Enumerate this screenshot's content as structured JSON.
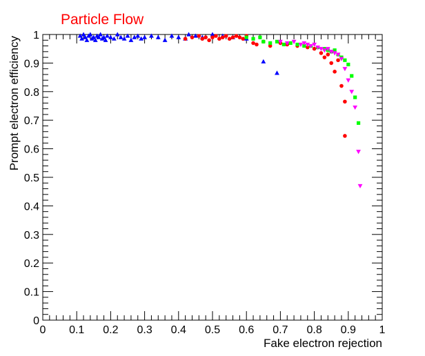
{
  "chart_data": {
    "type": "scatter",
    "title": "Particle Flow",
    "xlabel": "Fake electron rejection",
    "ylabel": "Prompt electron efficiency",
    "xlim": [
      0,
      1
    ],
    "ylim": [
      0,
      1
    ],
    "x_ticks": [
      "0",
      "0.1",
      "0.2",
      "0.3",
      "0.4",
      "0.5",
      "0.6",
      "0.7",
      "0.8",
      "0.9",
      "1"
    ],
    "y_ticks": [
      "0",
      "0.1",
      "0.2",
      "0.3",
      "0.4",
      "0.5",
      "0.6",
      "0.7",
      "0.8",
      "0.9",
      "1"
    ],
    "grid": false,
    "colors": {
      "title": "#ff0000",
      "axis": "#000000"
    },
    "series": [
      {
        "marker": "triangle-up",
        "color": "#0000ff",
        "points": [
          [
            0.11,
            0.995
          ],
          [
            0.115,
            0.985
          ],
          [
            0.12,
            1.0
          ],
          [
            0.125,
            0.99
          ],
          [
            0.13,
            0.98
          ],
          [
            0.135,
            0.995
          ],
          [
            0.14,
            1.0
          ],
          [
            0.145,
            0.985
          ],
          [
            0.15,
            0.99
          ],
          [
            0.155,
            0.98
          ],
          [
            0.16,
            0.995
          ],
          [
            0.165,
            0.99
          ],
          [
            0.17,
            1.0
          ],
          [
            0.175,
            0.985
          ],
          [
            0.18,
            0.99
          ],
          [
            0.185,
            0.98
          ],
          [
            0.19,
            0.995
          ],
          [
            0.2,
            0.99
          ],
          [
            0.21,
            0.985
          ],
          [
            0.22,
            1.0
          ],
          [
            0.23,
            0.99
          ],
          [
            0.24,
            0.985
          ],
          [
            0.25,
            0.995
          ],
          [
            0.26,
            0.98
          ],
          [
            0.27,
            0.99
          ],
          [
            0.28,
            0.995
          ],
          [
            0.29,
            0.985
          ],
          [
            0.3,
            0.99
          ],
          [
            0.32,
            0.995
          ],
          [
            0.34,
            0.99
          ],
          [
            0.36,
            0.98
          ],
          [
            0.38,
            0.995
          ],
          [
            0.4,
            0.99
          ],
          [
            0.42,
            0.985
          ],
          [
            0.43,
            1.0
          ],
          [
            0.45,
            0.995
          ],
          [
            0.47,
            0.99
          ],
          [
            0.5,
            1.0
          ],
          [
            0.53,
            0.995
          ],
          [
            0.56,
            0.99
          ],
          [
            0.6,
            0.985
          ],
          [
            0.65,
            0.905
          ],
          [
            0.69,
            0.865
          ]
        ]
      },
      {
        "marker": "circle",
        "color": "#ff0000",
        "points": [
          [
            0.42,
            0.985
          ],
          [
            0.44,
            0.99
          ],
          [
            0.46,
            0.995
          ],
          [
            0.47,
            0.985
          ],
          [
            0.48,
            0.99
          ],
          [
            0.49,
            0.98
          ],
          [
            0.5,
            0.99
          ],
          [
            0.51,
            0.995
          ],
          [
            0.52,
            0.985
          ],
          [
            0.53,
            0.99
          ],
          [
            0.54,
            0.995
          ],
          [
            0.55,
            0.985
          ],
          [
            0.56,
            0.99
          ],
          [
            0.57,
            0.995
          ],
          [
            0.58,
            0.99
          ],
          [
            0.59,
            0.985
          ],
          [
            0.6,
            0.995
          ],
          [
            0.62,
            0.97
          ],
          [
            0.63,
            0.965
          ],
          [
            0.65,
            0.975
          ],
          [
            0.67,
            0.96
          ],
          [
            0.7,
            0.97
          ],
          [
            0.72,
            0.965
          ],
          [
            0.75,
            0.96
          ],
          [
            0.78,
            0.955
          ],
          [
            0.8,
            0.95
          ],
          [
            0.82,
            0.935
          ],
          [
            0.83,
            0.92
          ],
          [
            0.84,
            0.93
          ],
          [
            0.85,
            0.9
          ],
          [
            0.86,
            0.87
          ],
          [
            0.87,
            0.91
          ],
          [
            0.88,
            0.82
          ],
          [
            0.89,
            0.765
          ],
          [
            0.89,
            0.645
          ]
        ]
      },
      {
        "marker": "square",
        "color": "#00ff00",
        "points": [
          [
            0.6,
            0.99
          ],
          [
            0.62,
            0.985
          ],
          [
            0.64,
            0.99
          ],
          [
            0.65,
            0.975
          ],
          [
            0.67,
            0.97
          ],
          [
            0.69,
            0.975
          ],
          [
            0.71,
            0.965
          ],
          [
            0.73,
            0.97
          ],
          [
            0.75,
            0.965
          ],
          [
            0.77,
            0.96
          ],
          [
            0.79,
            0.96
          ],
          [
            0.81,
            0.955
          ],
          [
            0.83,
            0.95
          ],
          [
            0.84,
            0.945
          ],
          [
            0.85,
            0.94
          ],
          [
            0.86,
            0.945
          ],
          [
            0.87,
            0.93
          ],
          [
            0.88,
            0.92
          ],
          [
            0.89,
            0.91
          ],
          [
            0.9,
            0.895
          ],
          [
            0.91,
            0.855
          ],
          [
            0.92,
            0.78
          ],
          [
            0.93,
            0.69
          ]
        ]
      },
      {
        "marker": "triangle-down",
        "color": "#ff00ff",
        "points": [
          [
            0.7,
            0.975
          ],
          [
            0.72,
            0.97
          ],
          [
            0.74,
            0.975
          ],
          [
            0.76,
            0.965
          ],
          [
            0.77,
            0.97
          ],
          [
            0.78,
            0.965
          ],
          [
            0.79,
            0.96
          ],
          [
            0.8,
            0.965
          ],
          [
            0.81,
            0.955
          ],
          [
            0.82,
            0.95
          ],
          [
            0.83,
            0.945
          ],
          [
            0.84,
            0.95
          ],
          [
            0.85,
            0.94
          ],
          [
            0.86,
            0.935
          ],
          [
            0.87,
            0.93
          ],
          [
            0.88,
            0.915
          ],
          [
            0.89,
            0.88
          ],
          [
            0.9,
            0.84
          ],
          [
            0.91,
            0.8
          ],
          [
            0.92,
            0.745
          ],
          [
            0.93,
            0.59
          ],
          [
            0.935,
            0.47
          ]
        ]
      }
    ]
  }
}
